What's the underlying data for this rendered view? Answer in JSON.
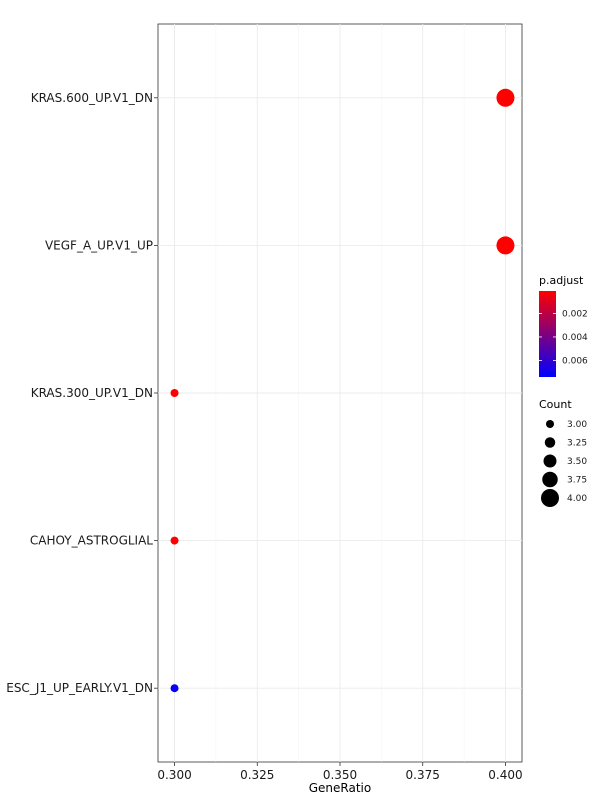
{
  "chart_data": {
    "type": "scatter",
    "xlabel": "GeneRatio",
    "ylabel": "",
    "xlim": [
      0.295,
      0.405
    ],
    "x_ticks": [
      "0.300",
      "0.325",
      "0.350",
      "0.375",
      "0.400"
    ],
    "x_tick_values": [
      0.3,
      0.325,
      0.35,
      0.375,
      0.4
    ],
    "grid": true,
    "categories": [
      "KRAS.600_UP.V1_DN",
      "VEGF_A_UP.V1_UP",
      "KRAS.300_UP.V1_DN",
      "CAHOY_ASTROGLIAL",
      "ESC_J1_UP_EARLY.V1_DN"
    ],
    "points": [
      {
        "term": "KRAS.600_UP.V1_DN",
        "gene_ratio": 0.4,
        "count": 4,
        "p_adjust": 0.0001
      },
      {
        "term": "VEGF_A_UP.V1_UP",
        "gene_ratio": 0.4,
        "count": 4,
        "p_adjust": 0.0001
      },
      {
        "term": "KRAS.300_UP.V1_DN",
        "gene_ratio": 0.3,
        "count": 3,
        "p_adjust": 0.0001
      },
      {
        "term": "CAHOY_ASTROGLIAL",
        "gene_ratio": 0.3,
        "count": 3,
        "p_adjust": 0.0001
      },
      {
        "term": "ESC_J1_UP_EARLY.V1_DN",
        "gene_ratio": 0.3,
        "count": 3,
        "p_adjust": 0.0072
      }
    ],
    "color_legend": {
      "title": "p.adjust",
      "low_color": "#FF0000",
      "high_color": "#0000FF",
      "range": [
        0.0001,
        0.0074
      ],
      "labels": [
        "0.002",
        "0.004",
        "0.006"
      ],
      "values": [
        0.002,
        0.004,
        0.006
      ]
    },
    "size_legend": {
      "title": "Count",
      "labels": [
        "3.00",
        "3.25",
        "3.50",
        "3.75",
        "4.00"
      ],
      "values": [
        3,
        3.25,
        3.5,
        3.75,
        4
      ]
    }
  }
}
